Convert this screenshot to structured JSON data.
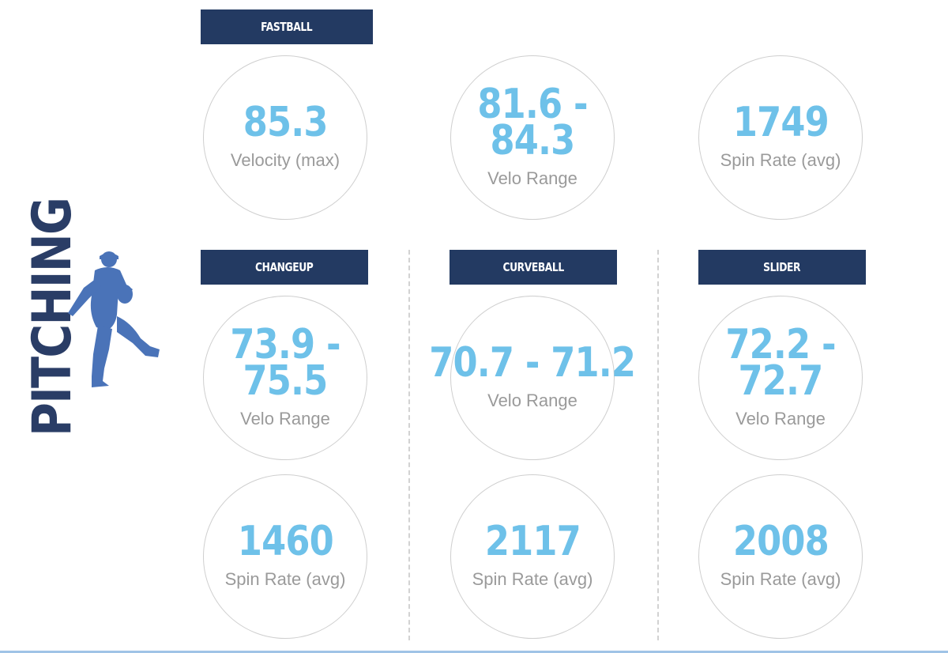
{
  "section_title": "PITCHING",
  "icon": "pitcher-silhouette-icon",
  "colors": {
    "header_bg": "#233a62",
    "value_text": "#6ec1e9",
    "label_text": "#9a9a9a",
    "title_text": "#2a3d66",
    "icon": "#4a73b8"
  },
  "pitches": {
    "fastball": {
      "name": "FASTBALL",
      "stats": [
        {
          "value": "85.3",
          "label": "Velocity (max)"
        },
        {
          "value": "81.6 -\n84.3",
          "label": "Velo Range"
        },
        {
          "value": "1749",
          "label": "Spin Rate (avg)"
        }
      ]
    },
    "changeup": {
      "name": "CHANGEUP",
      "stats": [
        {
          "value": "73.9 -\n75.5",
          "label": "Velo Range"
        },
        {
          "value": "1460",
          "label": "Spin Rate (avg)"
        }
      ]
    },
    "curveball": {
      "name": "CURVEBALL",
      "stats": [
        {
          "value": "70.7 - 71.2",
          "label": "Velo Range"
        },
        {
          "value": "2117",
          "label": "Spin Rate (avg)"
        }
      ]
    },
    "slider": {
      "name": "SLIDER",
      "stats": [
        {
          "value": "72.2 -\n72.7",
          "label": "Velo Range"
        },
        {
          "value": "2008",
          "label": "Spin Rate (avg)"
        }
      ]
    }
  }
}
